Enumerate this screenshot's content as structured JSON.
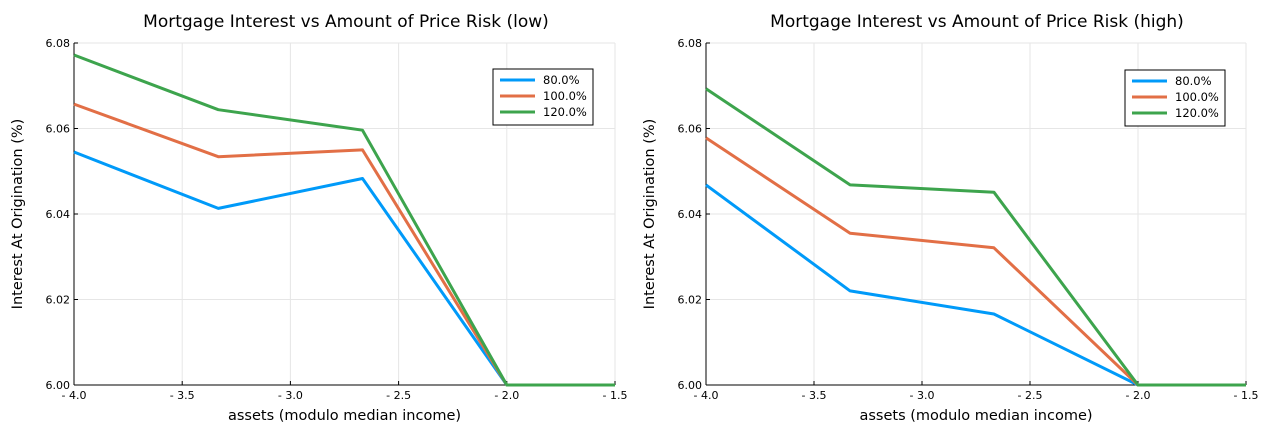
{
  "chart_data": [
    {
      "type": "line",
      "title": "Mortgage Interest vs Amount of Price Risk (low)",
      "xlabel": "assets (modulo median income)",
      "ylabel": "Interest At Origination (%)",
      "x": [
        -4.0,
        -3.333,
        -2.667,
        -2.0,
        -1.5
      ],
      "xlim": [
        -4.0,
        -1.5
      ],
      "ylim": [
        6.0,
        6.08
      ],
      "xticks": [
        -4.0,
        -3.5,
        -3.0,
        -2.5,
        -2.0,
        -1.5
      ],
      "xtick_labels": [
        "- 4.0",
        "- 3.5",
        "- 3.0",
        "- 2.5",
        "- 2.0",
        "- 1.5"
      ],
      "yticks": [
        6.0,
        6.02,
        6.04,
        6.06,
        6.08
      ],
      "ytick_labels": [
        "6.00",
        "6.02",
        "6.04",
        "6.06",
        "6.08"
      ],
      "grid": true,
      "legend_position": "top-right",
      "series": [
        {
          "name": "80.0%",
          "color": "#009af9",
          "values": [
            6.0545,
            6.0413,
            6.0483,
            6.0,
            6.0
          ]
        },
        {
          "name": "100.0%",
          "color": "#e26f46",
          "values": [
            6.0657,
            6.0534,
            6.055,
            6.0,
            6.0
          ]
        },
        {
          "name": "120.0%",
          "color": "#3da44d",
          "values": [
            6.0772,
            6.0644,
            6.0596,
            6.0,
            6.0
          ]
        }
      ]
    },
    {
      "type": "line",
      "title": "Mortgage Interest vs Amount of Price Risk (high)",
      "xlabel": "assets (modulo median income)",
      "ylabel": "Interest At Origination (%)",
      "x": [
        -4.0,
        -3.333,
        -2.667,
        -2.0,
        -1.5
      ],
      "xlim": [
        -4.0,
        -1.5
      ],
      "ylim": [
        6.0,
        6.08
      ],
      "xticks": [
        -4.0,
        -3.5,
        -3.0,
        -2.5,
        -2.0,
        -1.5
      ],
      "xtick_labels": [
        "- 4.0",
        "- 3.5",
        "- 3.0",
        "- 2.5",
        "- 2.0",
        "- 1.5"
      ],
      "yticks": [
        6.0,
        6.02,
        6.04,
        6.06,
        6.08
      ],
      "ytick_labels": [
        "6.00",
        "6.02",
        "6.04",
        "6.06",
        "6.08"
      ],
      "grid": true,
      "legend_position": "top-right",
      "series": [
        {
          "name": "80.0%",
          "color": "#009af9",
          "values": [
            6.0468,
            6.022,
            6.0166,
            6.0,
            6.0
          ]
        },
        {
          "name": "100.0%",
          "color": "#e26f46",
          "values": [
            6.0578,
            6.0355,
            6.0321,
            6.0,
            6.0
          ]
        },
        {
          "name": "120.0%",
          "color": "#3da44d",
          "values": [
            6.0693,
            6.0468,
            6.0451,
            6.0,
            6.0
          ]
        }
      ]
    }
  ]
}
